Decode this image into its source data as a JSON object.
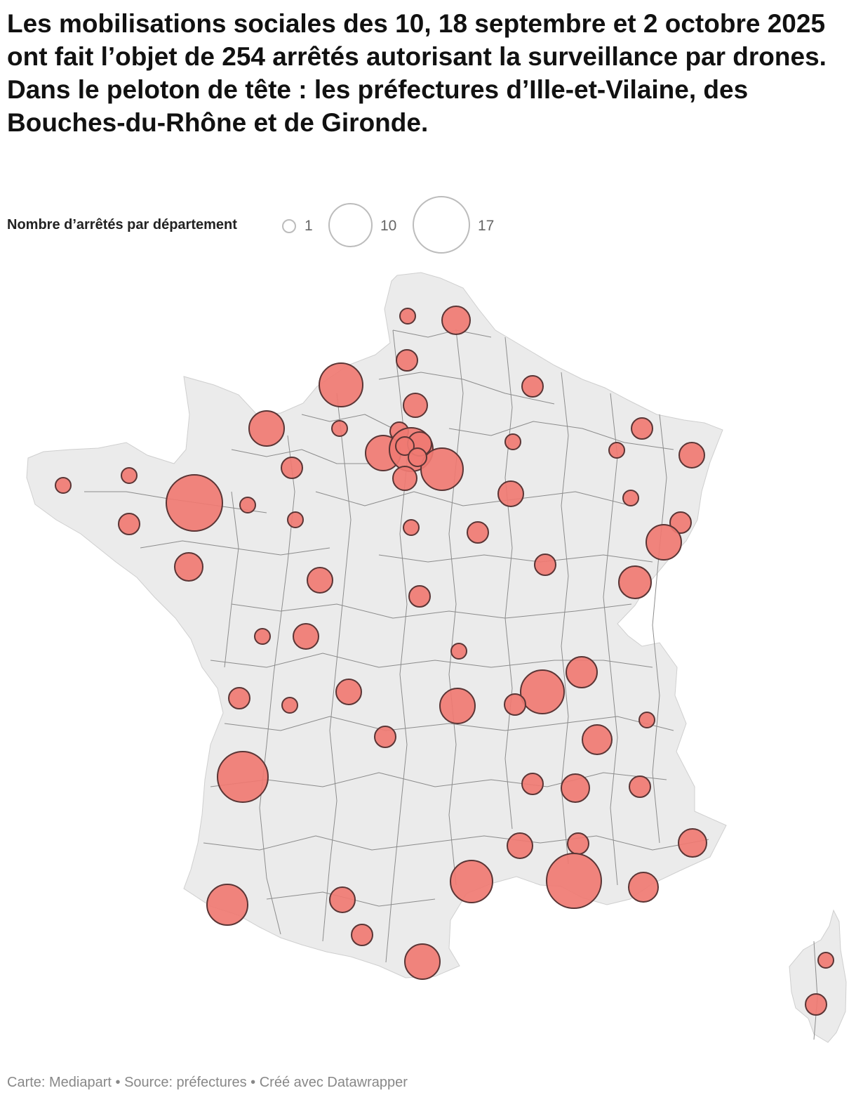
{
  "title": "Les mobilisations sociales des 10, 18 septembre et 2 octobre 2025 ont fait l’objet de 254 arrêtés autorisant la surveillance par drones. Dans le peloton de tête : les préfectures d’Ille-et-Vilaine, des Bouches-du-Rhône et de Gironde.",
  "legend": {
    "title": "Nombre d’arrêtés par département",
    "items": [
      {
        "label": "1",
        "value": 1
      },
      {
        "label": "10",
        "value": 10
      },
      {
        "label": "17",
        "value": 17
      }
    ]
  },
  "colors": {
    "bubble_fill": "#f07a72",
    "bubble_stroke": "#5a3535",
    "land": "#ebebeb",
    "borders": "#8c8c8c"
  },
  "footer": "Carte: Mediapart • Source: préfectures • Créé avec Datawrapper"
}
